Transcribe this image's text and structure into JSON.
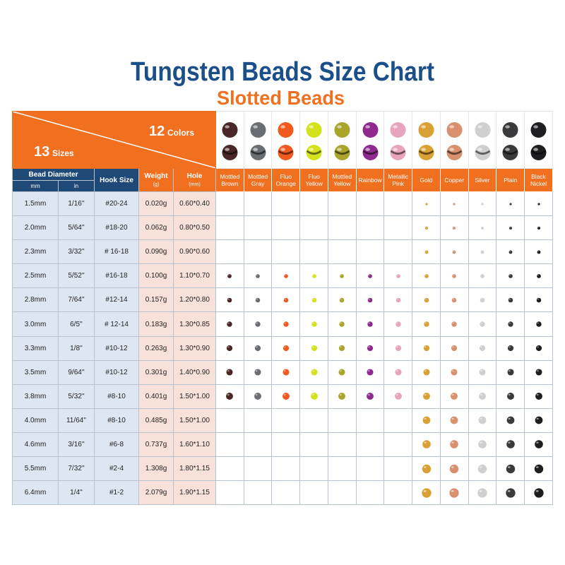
{
  "title": "Tungsten Beads Size Chart",
  "subtitle": "Slotted Beads",
  "corner": {
    "colors_count": "12",
    "colors_label": "Colors",
    "sizes_count": "13",
    "sizes_label": "Sizes"
  },
  "headers": {
    "bead_diameter": "Bead Diameter",
    "mm": "mm",
    "in": "in",
    "hook_size": "Hook Size",
    "weight": "Weight",
    "weight_unit": "(g)",
    "hole": "Hole",
    "hole_unit": "(mm)"
  },
  "colors": [
    {
      "name": "Mottled Brown",
      "color": "#4a2626"
    },
    {
      "name": "Mottled Gray",
      "color": "#6a6e72"
    },
    {
      "name": "Fluo Orange",
      "color": "#f05a1e"
    },
    {
      "name": "Fluo Yellow",
      "color": "#d4e21e"
    },
    {
      "name": "Mottled Yellow",
      "color": "#a8a42c"
    },
    {
      "name": "Rainbow",
      "color": "#8e2a8e"
    },
    {
      "name": "Metallic Pink",
      "color": "#e8a4bc"
    },
    {
      "name": "Gold",
      "color": "#d9a034"
    },
    {
      "name": "Copper",
      "color": "#d8906e"
    },
    {
      "name": "Silver",
      "color": "#cfcfcf"
    },
    {
      "name": "Plain",
      "color": "#3a3a3c"
    },
    {
      "name": "Black Nickel",
      "color": "#1e1e20"
    }
  ],
  "rows": [
    [
      "1.5mm",
      "1/16''",
      "#20-24",
      "0.020g",
      "0.60*0.40"
    ],
    [
      "2.0mm",
      "5/64''",
      "#18-20",
      "0.062g",
      "0.80*0.50"
    ],
    [
      "2.3mm",
      "3/32''",
      "# 16-18",
      "0.090g",
      "0.90*0.60"
    ],
    [
      "2.5mm",
      "5/52''",
      "#16-18",
      "0.100g",
      "1.10*0.70"
    ],
    [
      "2.8mm",
      "7/64''",
      "#12-14",
      "0.157g",
      "1.20*0.80"
    ],
    [
      "3.0mm",
      "6/5''",
      "# 12-14",
      "0.183g",
      "1.30*0.85"
    ],
    [
      "3.3mm",
      "1/8''",
      "#10-12",
      "0.263g",
      "1.30*0.90"
    ],
    [
      "3.5mm",
      "9/64''",
      "#10-12",
      "0.301g",
      "1.40*0.90"
    ],
    [
      "3.8mm",
      "5/32''",
      "#8-10",
      "0.401g",
      "1.50*1.00"
    ],
    [
      "4.0mm",
      "11/64''",
      "#8-10",
      "0.485g",
      "1.50*1.00"
    ],
    [
      "4.6mm",
      "3/16''",
      "#6-8",
      "0.737g",
      "1.60*1.10"
    ],
    [
      "5.5mm",
      "7/32''",
      "#2-4",
      "1.308g",
      "1.80*1.15"
    ],
    [
      "6.4mm",
      "1/4''",
      "#1-2",
      "2.079g",
      "1.90*1.15"
    ]
  ],
  "available": [
    [
      7,
      8,
      9,
      10,
      11
    ],
    [
      7,
      8,
      9,
      10,
      11
    ],
    [
      7,
      8,
      9,
      10,
      11
    ],
    [
      0,
      1,
      2,
      3,
      4,
      5,
      6,
      7,
      8,
      9,
      10,
      11
    ],
    [
      0,
      1,
      2,
      3,
      4,
      5,
      6,
      7,
      8,
      9,
      10,
      11
    ],
    [
      0,
      1,
      2,
      3,
      4,
      5,
      6,
      7,
      8,
      9,
      10,
      11
    ],
    [
      0,
      1,
      2,
      3,
      4,
      5,
      6,
      7,
      8,
      9,
      10,
      11
    ],
    [
      0,
      1,
      2,
      3,
      4,
      5,
      6,
      7,
      8,
      9,
      10,
      11
    ],
    [
      0,
      1,
      2,
      3,
      4,
      5,
      6,
      7,
      8,
      9,
      10,
      11
    ],
    [
      7,
      8,
      9,
      10,
      11
    ],
    [
      7,
      8,
      9,
      10,
      11
    ],
    [
      7,
      8,
      9,
      10,
      11
    ],
    [
      7,
      8,
      9,
      10,
      11
    ]
  ]
}
